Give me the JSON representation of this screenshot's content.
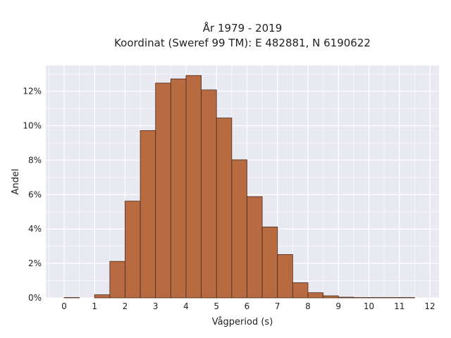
{
  "chart_data": {
    "type": "bar",
    "title": "År 1979 - 2019",
    "subtitle": "Koordinat (Sweref 99 TM): E 482881, N 6190622",
    "xlabel": "Vågperiod (s)",
    "ylabel": "Andel",
    "xlim": [
      -0.6,
      12.3
    ],
    "ylim": [
      0,
      13.5
    ],
    "x_ticks": [
      0,
      1,
      2,
      3,
      4,
      5,
      6,
      7,
      8,
      9,
      10,
      11,
      12
    ],
    "y_ticks": [
      0,
      2,
      4,
      6,
      8,
      10,
      12
    ],
    "y_tick_labels": [
      "0%",
      "2%",
      "4%",
      "6%",
      "8%",
      "10%",
      "12%"
    ],
    "bin_width": 0.5,
    "bin_starts": [
      0,
      0.5,
      1,
      1.5,
      2,
      2.5,
      3,
      3.5,
      4,
      4.5,
      5,
      5.5,
      6,
      6.5,
      7,
      7.5,
      8,
      8.5,
      9,
      9.5,
      10,
      10.5,
      11
    ],
    "values": [
      0.02,
      0.0,
      0.18,
      2.12,
      5.62,
      9.72,
      12.48,
      12.72,
      12.92,
      12.08,
      10.45,
      8.02,
      5.88,
      4.12,
      2.52,
      0.88,
      0.3,
      0.12,
      0.04,
      0.02,
      0.02,
      0.02,
      0.02
    ],
    "bar_color": "#b86a41",
    "bar_edge_color": "#4a2a1a",
    "background_color": "#e9e9f1",
    "grid": true,
    "grid_color": "#ffffff"
  }
}
